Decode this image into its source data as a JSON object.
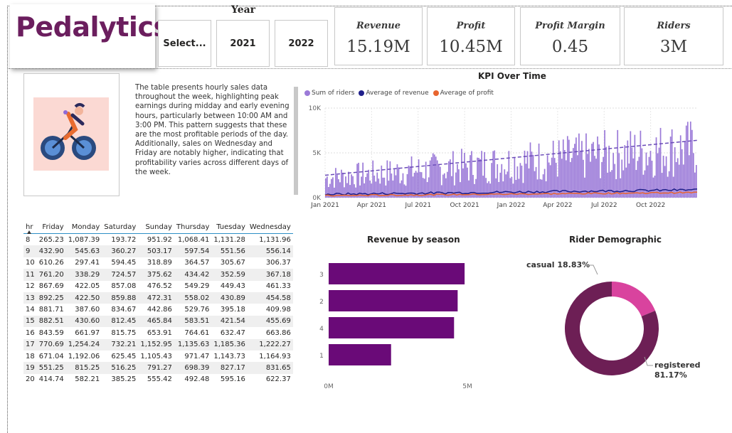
{
  "logo": {
    "text": "Pedalytics"
  },
  "year_filter": {
    "title": "Year",
    "options": [
      "Select...",
      "2021",
      "2022"
    ]
  },
  "kpis": [
    {
      "label": "Revenue",
      "value": "15.19M"
    },
    {
      "label": "Profit",
      "value": "10.45M"
    },
    {
      "label": "Profit Margin",
      "value": "0.45"
    },
    {
      "label": "Riders",
      "value": "3M"
    }
  ],
  "description": "The table presents hourly sales data throughout the week, highlighting peak earnings during midday and early evening hours, particularly between 10:00 AM and 3:00 PM. This pattern suggests that these are the most profitable periods of the day. Additionally, sales on Wednesday and Friday are notably higher, indicating that profitability varies across different days of the week.",
  "colors": {
    "brand": "#6b1e5e",
    "bar_purple": "#6a0a78",
    "riders": "#9b7ad8",
    "revenue": "#1f1f8a",
    "profit": "#e8652f",
    "registered": "#6d1f55",
    "casual": "#d9439e"
  },
  "chart_data": [
    {
      "type": "bar",
      "title": "KPI Over Time",
      "legend": [
        "Sum of riders",
        "Average of revenue",
        "Average of profit"
      ],
      "legend_position": "top-left",
      "y_ticks": [
        "0K",
        "5K",
        "10K"
      ],
      "ylim": [
        0,
        10000
      ],
      "x_ticks": [
        "Jan 2021",
        "Apr 2021",
        "Jul 2021",
        "Oct 2021",
        "Jan 2022",
        "Apr 2022",
        "Jul 2022",
        "Oct 2022"
      ],
      "trend_start": 2500,
      "trend_end": 6400
    },
    {
      "type": "table",
      "columns": [
        "hr",
        "Friday",
        "Monday",
        "Saturday",
        "Sunday",
        "Thursday",
        "Tuesday",
        "Wednesday"
      ],
      "rows": [
        [
          "8",
          "265.23",
          "1,087.39",
          "193.72",
          "951.92",
          "1,068.41",
          "1,131.28",
          "1,131.96"
        ],
        [
          "9",
          "432.90",
          "545.63",
          "360.27",
          "503.17",
          "597.54",
          "551.56",
          "556.14"
        ],
        [
          "10",
          "610.26",
          "297.41",
          "594.45",
          "318.89",
          "364.57",
          "305.67",
          "306.37"
        ],
        [
          "11",
          "761.20",
          "338.29",
          "724.57",
          "375.62",
          "434.42",
          "352.59",
          "367.18"
        ],
        [
          "12",
          "867.69",
          "422.05",
          "857.08",
          "476.52",
          "549.29",
          "449.43",
          "461.33"
        ],
        [
          "13",
          "892.25",
          "422.50",
          "859.88",
          "472.31",
          "558.02",
          "430.89",
          "454.58"
        ],
        [
          "14",
          "881.71",
          "387.60",
          "834.67",
          "442.86",
          "529.76",
          "395.18",
          "409.98"
        ],
        [
          "15",
          "882.51",
          "430.60",
          "812.45",
          "465.84",
          "583.51",
          "421.54",
          "455.69"
        ],
        [
          "16",
          "843.59",
          "661.97",
          "815.75",
          "653.91",
          "764.61",
          "632.47",
          "663.86"
        ],
        [
          "17",
          "770.69",
          "1,254.24",
          "732.21",
          "1,152.95",
          "1,135.63",
          "1,185.36",
          "1,222.27"
        ],
        [
          "18",
          "671.04",
          "1,192.06",
          "625.45",
          "1,105.43",
          "971.47",
          "1,143.73",
          "1,164.93"
        ],
        [
          "19",
          "551.25",
          "815.25",
          "516.25",
          "791.27",
          "698.39",
          "827.17",
          "831.65"
        ],
        [
          "20",
          "414.74",
          "582.21",
          "385.25",
          "555.42",
          "492.48",
          "595.16",
          "622.37"
        ]
      ]
    },
    {
      "type": "bar",
      "orientation": "horizontal",
      "title": "Revenue by season",
      "categories": [
        "3",
        "2",
        "4",
        "1"
      ],
      "values": [
        4900000,
        4650000,
        4520000,
        2250000
      ],
      "x_ticks": [
        "0M",
        "5M"
      ],
      "xlim": [
        0,
        5000000
      ]
    },
    {
      "type": "pie",
      "title": "Rider Demographic",
      "slices": [
        {
          "label": "casual 18.83%",
          "value": 18.83
        },
        {
          "label": "registered",
          "value": 81.17,
          "pct_label": "81.17%"
        }
      ]
    }
  ]
}
